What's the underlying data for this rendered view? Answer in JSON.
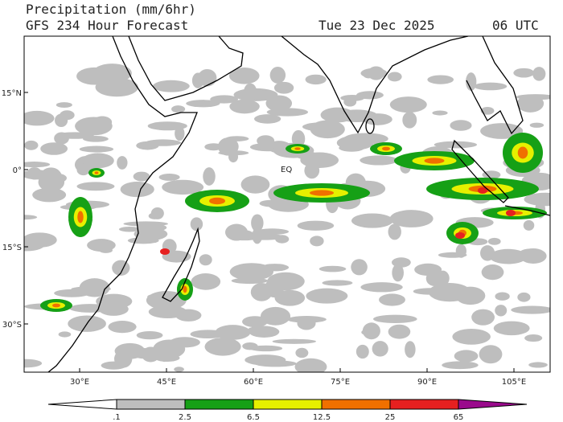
{
  "header": {
    "title": "Precipitation (mm/6hr)",
    "subtitle": "GFS 234 Hour Forecast",
    "date": "Tue 23 Dec 2025",
    "time": "06 UTC"
  },
  "map": {
    "lat_labels": [
      "15°N",
      "0°",
      "15°S",
      "30°S"
    ],
    "lon_labels": [
      "30°E",
      "45°E",
      "60°E",
      "75°E",
      "90°E",
      "105°E"
    ],
    "equator_label": "EQ"
  },
  "colorbar": {
    "labels": [
      ".1",
      "2.5",
      "6.5",
      "12.5",
      "25",
      "65"
    ],
    "colors": [
      "#ffffff",
      "#bebebe",
      "#16a016",
      "#e6f000",
      "#f07000",
      "#e62020",
      "#9a0a8c"
    ]
  }
}
